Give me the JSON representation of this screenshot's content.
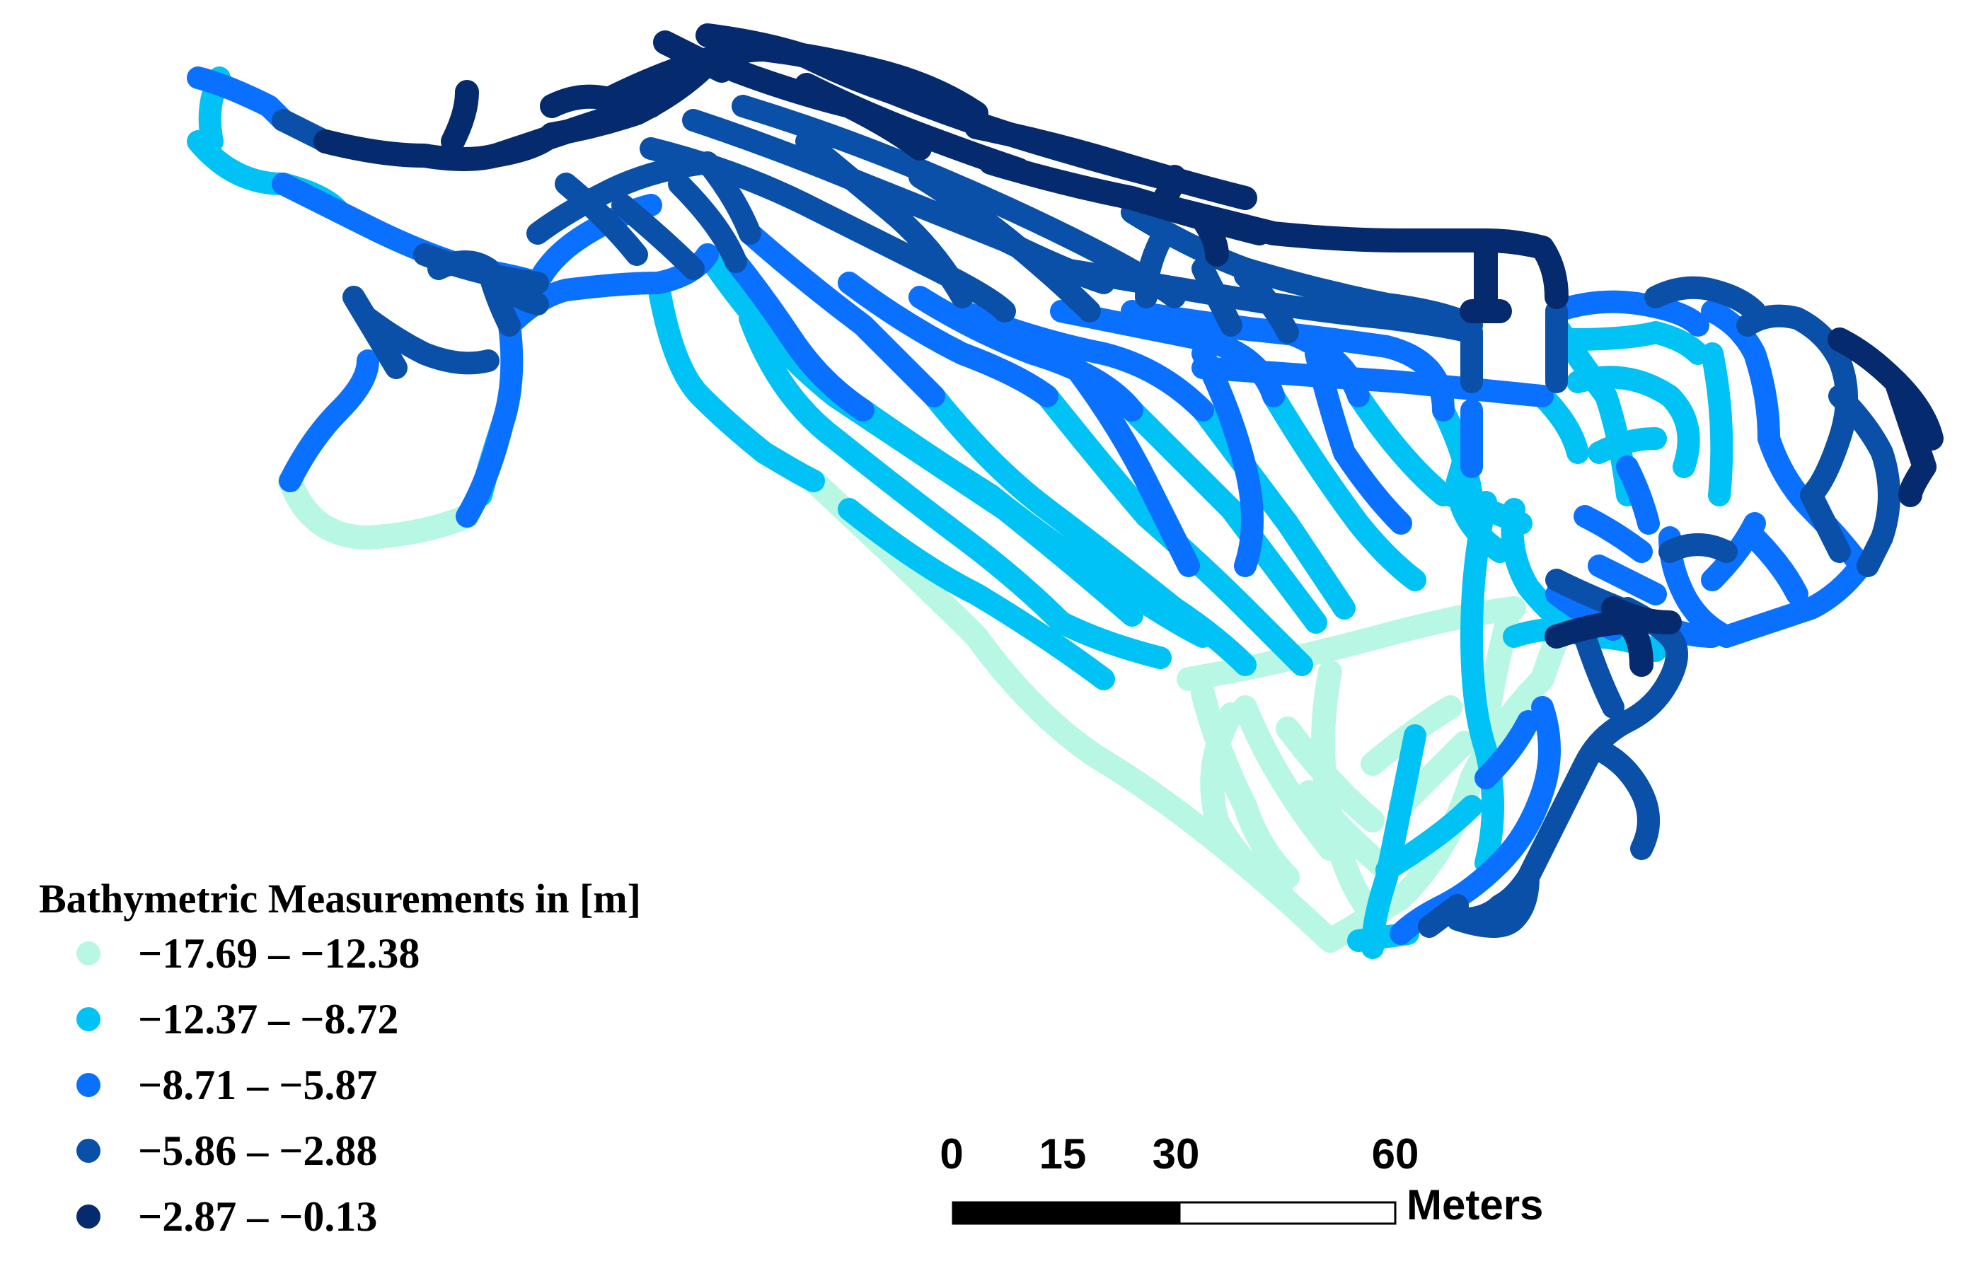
{
  "legend": {
    "title": "Bathymetric Measurements in [m]",
    "classes": [
      {
        "label": "−17.69 – −12.38",
        "color": "#b8f7e3"
      },
      {
        "label": "−12.37 – −8.72",
        "color": "#00c2f5"
      },
      {
        "label": "−8.71 – −5.87",
        "color": "#0a70ff"
      },
      {
        "label": "−5.86 – −2.88",
        "color": "#0a50a8"
      },
      {
        "label": "−2.87 – −0.13",
        "color": "#062a6e"
      }
    ]
  },
  "scale_bar": {
    "ticks": [
      "0",
      "15",
      "30",
      "60"
    ],
    "unit": "Meters"
  }
}
